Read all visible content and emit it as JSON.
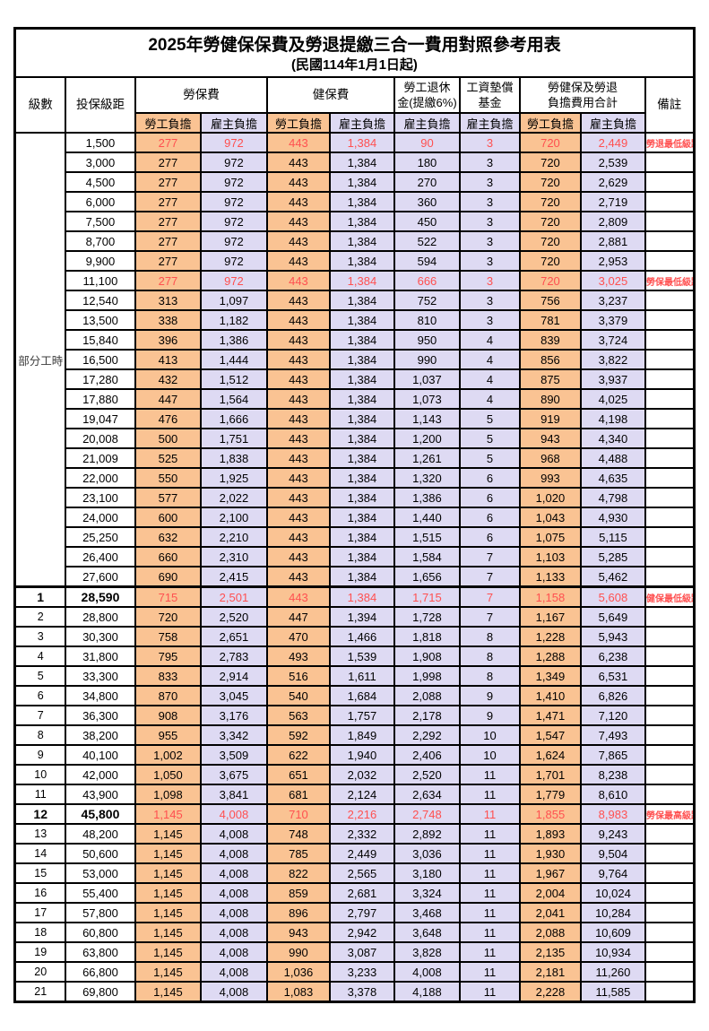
{
  "title": "2025年勞健保保費及勞退提繳三合一費用對照參考用表",
  "subtitle": "(民國114年1月1日起)",
  "header": {
    "level": "級數",
    "bracket": "投保級距",
    "labor_insurance": "勞保費",
    "health_insurance": "健保費",
    "pension_line1": "勞工退休",
    "pension_line2": "金(提繳6%)",
    "fund_line1": "工資墊償",
    "fund_line2": "基金",
    "total_line1": "勞健保及勞退",
    "total_line2": "負擔費用合計",
    "employee": "勞工負擔",
    "employer": "雇主負擔",
    "remark": "備註"
  },
  "part_time_label": "部分工時",
  "colors": {
    "employee_fill": "#FAC393",
    "employer_fill": "#DEDAF3",
    "highlight_red": "#FF5050",
    "border": "#000000"
  },
  "rows": [
    {
      "level": "",
      "bracket": "1,500",
      "li_emp": "277",
      "li_er": "972",
      "hi_emp": "443",
      "hi_er": "1,384",
      "pension": "90",
      "fund": "3",
      "tot_emp": "720",
      "tot_er": "2,449",
      "remark": "勞退最低級距",
      "red": true,
      "bold": false,
      "thick_top": false
    },
    {
      "level": "",
      "bracket": "3,000",
      "li_emp": "277",
      "li_er": "972",
      "hi_emp": "443",
      "hi_er": "1,384",
      "pension": "180",
      "fund": "3",
      "tot_emp": "720",
      "tot_er": "2,539",
      "remark": "",
      "red": false,
      "bold": false,
      "thick_top": false
    },
    {
      "level": "",
      "bracket": "4,500",
      "li_emp": "277",
      "li_er": "972",
      "hi_emp": "443",
      "hi_er": "1,384",
      "pension": "270",
      "fund": "3",
      "tot_emp": "720",
      "tot_er": "2,629",
      "remark": "",
      "red": false,
      "bold": false,
      "thick_top": false
    },
    {
      "level": "",
      "bracket": "6,000",
      "li_emp": "277",
      "li_er": "972",
      "hi_emp": "443",
      "hi_er": "1,384",
      "pension": "360",
      "fund": "3",
      "tot_emp": "720",
      "tot_er": "2,719",
      "remark": "",
      "red": false,
      "bold": false,
      "thick_top": false
    },
    {
      "level": "",
      "bracket": "7,500",
      "li_emp": "277",
      "li_er": "972",
      "hi_emp": "443",
      "hi_er": "1,384",
      "pension": "450",
      "fund": "3",
      "tot_emp": "720",
      "tot_er": "2,809",
      "remark": "",
      "red": false,
      "bold": false,
      "thick_top": false
    },
    {
      "level": "",
      "bracket": "8,700",
      "li_emp": "277",
      "li_er": "972",
      "hi_emp": "443",
      "hi_er": "1,384",
      "pension": "522",
      "fund": "3",
      "tot_emp": "720",
      "tot_er": "2,881",
      "remark": "",
      "red": false,
      "bold": false,
      "thick_top": false
    },
    {
      "level": "",
      "bracket": "9,900",
      "li_emp": "277",
      "li_er": "972",
      "hi_emp": "443",
      "hi_er": "1,384",
      "pension": "594",
      "fund": "3",
      "tot_emp": "720",
      "tot_er": "2,953",
      "remark": "",
      "red": false,
      "bold": false,
      "thick_top": false
    },
    {
      "level": "",
      "bracket": "11,100",
      "li_emp": "277",
      "li_er": "972",
      "hi_emp": "443",
      "hi_er": "1,384",
      "pension": "666",
      "fund": "3",
      "tot_emp": "720",
      "tot_er": "3,025",
      "remark": "勞保最低級距",
      "red": true,
      "bold": false,
      "thick_top": false
    },
    {
      "level": "",
      "bracket": "12,540",
      "li_emp": "313",
      "li_er": "1,097",
      "hi_emp": "443",
      "hi_er": "1,384",
      "pension": "752",
      "fund": "3",
      "tot_emp": "756",
      "tot_er": "3,237",
      "remark": "",
      "red": false,
      "bold": false,
      "thick_top": false
    },
    {
      "level": "",
      "bracket": "13,500",
      "li_emp": "338",
      "li_er": "1,182",
      "hi_emp": "443",
      "hi_er": "1,384",
      "pension": "810",
      "fund": "3",
      "tot_emp": "781",
      "tot_er": "3,379",
      "remark": "",
      "red": false,
      "bold": false,
      "thick_top": false
    },
    {
      "level": "",
      "bracket": "15,840",
      "li_emp": "396",
      "li_er": "1,386",
      "hi_emp": "443",
      "hi_er": "1,384",
      "pension": "950",
      "fund": "4",
      "tot_emp": "839",
      "tot_er": "3,724",
      "remark": "",
      "red": false,
      "bold": false,
      "thick_top": false
    },
    {
      "level": "",
      "bracket": "16,500",
      "li_emp": "413",
      "li_er": "1,444",
      "hi_emp": "443",
      "hi_er": "1,384",
      "pension": "990",
      "fund": "4",
      "tot_emp": "856",
      "tot_er": "3,822",
      "remark": "",
      "red": false,
      "bold": false,
      "thick_top": false
    },
    {
      "level": "",
      "bracket": "17,280",
      "li_emp": "432",
      "li_er": "1,512",
      "hi_emp": "443",
      "hi_er": "1,384",
      "pension": "1,037",
      "fund": "4",
      "tot_emp": "875",
      "tot_er": "3,937",
      "remark": "",
      "red": false,
      "bold": false,
      "thick_top": false
    },
    {
      "level": "",
      "bracket": "17,880",
      "li_emp": "447",
      "li_er": "1,564",
      "hi_emp": "443",
      "hi_er": "1,384",
      "pension": "1,073",
      "fund": "4",
      "tot_emp": "890",
      "tot_er": "4,025",
      "remark": "",
      "red": false,
      "bold": false,
      "thick_top": false
    },
    {
      "level": "",
      "bracket": "19,047",
      "li_emp": "476",
      "li_er": "1,666",
      "hi_emp": "443",
      "hi_er": "1,384",
      "pension": "1,143",
      "fund": "5",
      "tot_emp": "919",
      "tot_er": "4,198",
      "remark": "",
      "red": false,
      "bold": false,
      "thick_top": false
    },
    {
      "level": "",
      "bracket": "20,008",
      "li_emp": "500",
      "li_er": "1,751",
      "hi_emp": "443",
      "hi_er": "1,384",
      "pension": "1,200",
      "fund": "5",
      "tot_emp": "943",
      "tot_er": "4,340",
      "remark": "",
      "red": false,
      "bold": false,
      "thick_top": false
    },
    {
      "level": "",
      "bracket": "21,009",
      "li_emp": "525",
      "li_er": "1,838",
      "hi_emp": "443",
      "hi_er": "1,384",
      "pension": "1,261",
      "fund": "5",
      "tot_emp": "968",
      "tot_er": "4,488",
      "remark": "",
      "red": false,
      "bold": false,
      "thick_top": false
    },
    {
      "level": "",
      "bracket": "22,000",
      "li_emp": "550",
      "li_er": "1,925",
      "hi_emp": "443",
      "hi_er": "1,384",
      "pension": "1,320",
      "fund": "6",
      "tot_emp": "993",
      "tot_er": "4,635",
      "remark": "",
      "red": false,
      "bold": false,
      "thick_top": false
    },
    {
      "level": "",
      "bracket": "23,100",
      "li_emp": "577",
      "li_er": "2,022",
      "hi_emp": "443",
      "hi_er": "1,384",
      "pension": "1,386",
      "fund": "6",
      "tot_emp": "1,020",
      "tot_er": "4,798",
      "remark": "",
      "red": false,
      "bold": false,
      "thick_top": false
    },
    {
      "level": "",
      "bracket": "24,000",
      "li_emp": "600",
      "li_er": "2,100",
      "hi_emp": "443",
      "hi_er": "1,384",
      "pension": "1,440",
      "fund": "6",
      "tot_emp": "1,043",
      "tot_er": "4,930",
      "remark": "",
      "red": false,
      "bold": false,
      "thick_top": false
    },
    {
      "level": "",
      "bracket": "25,250",
      "li_emp": "632",
      "li_er": "2,210",
      "hi_emp": "443",
      "hi_er": "1,384",
      "pension": "1,515",
      "fund": "6",
      "tot_emp": "1,075",
      "tot_er": "5,115",
      "remark": "",
      "red": false,
      "bold": false,
      "thick_top": false
    },
    {
      "level": "",
      "bracket": "26,400",
      "li_emp": "660",
      "li_er": "2,310",
      "hi_emp": "443",
      "hi_er": "1,384",
      "pension": "1,584",
      "fund": "7",
      "tot_emp": "1,103",
      "tot_er": "5,285",
      "remark": "",
      "red": false,
      "bold": false,
      "thick_top": false
    },
    {
      "level": "",
      "bracket": "27,600",
      "li_emp": "690",
      "li_er": "2,415",
      "hi_emp": "443",
      "hi_er": "1,384",
      "pension": "1,656",
      "fund": "7",
      "tot_emp": "1,133",
      "tot_er": "5,462",
      "remark": "",
      "red": false,
      "bold": false,
      "thick_top": false
    },
    {
      "level": "1",
      "bracket": "28,590",
      "li_emp": "715",
      "li_er": "2,501",
      "hi_emp": "443",
      "hi_er": "1,384",
      "pension": "1,715",
      "fund": "7",
      "tot_emp": "1,158",
      "tot_er": "5,608",
      "remark": "健保最低級距",
      "red": true,
      "bold": true,
      "thick_top": true
    },
    {
      "level": "2",
      "bracket": "28,800",
      "li_emp": "720",
      "li_er": "2,520",
      "hi_emp": "447",
      "hi_er": "1,394",
      "pension": "1,728",
      "fund": "7",
      "tot_emp": "1,167",
      "tot_er": "5,649",
      "remark": "",
      "red": false,
      "bold": false,
      "thick_top": false
    },
    {
      "level": "3",
      "bracket": "30,300",
      "li_emp": "758",
      "li_er": "2,651",
      "hi_emp": "470",
      "hi_er": "1,466",
      "pension": "1,818",
      "fund": "8",
      "tot_emp": "1,228",
      "tot_er": "5,943",
      "remark": "",
      "red": false,
      "bold": false,
      "thick_top": false
    },
    {
      "level": "4",
      "bracket": "31,800",
      "li_emp": "795",
      "li_er": "2,783",
      "hi_emp": "493",
      "hi_er": "1,539",
      "pension": "1,908",
      "fund": "8",
      "tot_emp": "1,288",
      "tot_er": "6,238",
      "remark": "",
      "red": false,
      "bold": false,
      "thick_top": false
    },
    {
      "level": "5",
      "bracket": "33,300",
      "li_emp": "833",
      "li_er": "2,914",
      "hi_emp": "516",
      "hi_er": "1,611",
      "pension": "1,998",
      "fund": "8",
      "tot_emp": "1,349",
      "tot_er": "6,531",
      "remark": "",
      "red": false,
      "bold": false,
      "thick_top": false
    },
    {
      "level": "6",
      "bracket": "34,800",
      "li_emp": "870",
      "li_er": "3,045",
      "hi_emp": "540",
      "hi_er": "1,684",
      "pension": "2,088",
      "fund": "9",
      "tot_emp": "1,410",
      "tot_er": "6,826",
      "remark": "",
      "red": false,
      "bold": false,
      "thick_top": false
    },
    {
      "level": "7",
      "bracket": "36,300",
      "li_emp": "908",
      "li_er": "3,176",
      "hi_emp": "563",
      "hi_er": "1,757",
      "pension": "2,178",
      "fund": "9",
      "tot_emp": "1,471",
      "tot_er": "7,120",
      "remark": "",
      "red": false,
      "bold": false,
      "thick_top": false
    },
    {
      "level": "8",
      "bracket": "38,200",
      "li_emp": "955",
      "li_er": "3,342",
      "hi_emp": "592",
      "hi_er": "1,849",
      "pension": "2,292",
      "fund": "10",
      "tot_emp": "1,547",
      "tot_er": "7,493",
      "remark": "",
      "red": false,
      "bold": false,
      "thick_top": false
    },
    {
      "level": "9",
      "bracket": "40,100",
      "li_emp": "1,002",
      "li_er": "3,509",
      "hi_emp": "622",
      "hi_er": "1,940",
      "pension": "2,406",
      "fund": "10",
      "tot_emp": "1,624",
      "tot_er": "7,865",
      "remark": "",
      "red": false,
      "bold": false,
      "thick_top": false
    },
    {
      "level": "10",
      "bracket": "42,000",
      "li_emp": "1,050",
      "li_er": "3,675",
      "hi_emp": "651",
      "hi_er": "2,032",
      "pension": "2,520",
      "fund": "11",
      "tot_emp": "1,701",
      "tot_er": "8,238",
      "remark": "",
      "red": false,
      "bold": false,
      "thick_top": false
    },
    {
      "level": "11",
      "bracket": "43,900",
      "li_emp": "1,098",
      "li_er": "3,841",
      "hi_emp": "681",
      "hi_er": "2,124",
      "pension": "2,634",
      "fund": "11",
      "tot_emp": "1,779",
      "tot_er": "8,610",
      "remark": "",
      "red": false,
      "bold": false,
      "thick_top": false
    },
    {
      "level": "12",
      "bracket": "45,800",
      "li_emp": "1,145",
      "li_er": "4,008",
      "hi_emp": "710",
      "hi_er": "2,216",
      "pension": "2,748",
      "fund": "11",
      "tot_emp": "1,855",
      "tot_er": "8,983",
      "remark": "勞保最高級距",
      "red": true,
      "bold": true,
      "thick_top": false
    },
    {
      "level": "13",
      "bracket": "48,200",
      "li_emp": "1,145",
      "li_er": "4,008",
      "hi_emp": "748",
      "hi_er": "2,332",
      "pension": "2,892",
      "fund": "11",
      "tot_emp": "1,893",
      "tot_er": "9,243",
      "remark": "",
      "red": false,
      "bold": false,
      "thick_top": false
    },
    {
      "level": "14",
      "bracket": "50,600",
      "li_emp": "1,145",
      "li_er": "4,008",
      "hi_emp": "785",
      "hi_er": "2,449",
      "pension": "3,036",
      "fund": "11",
      "tot_emp": "1,930",
      "tot_er": "9,504",
      "remark": "",
      "red": false,
      "bold": false,
      "thick_top": false
    },
    {
      "level": "15",
      "bracket": "53,000",
      "li_emp": "1,145",
      "li_er": "4,008",
      "hi_emp": "822",
      "hi_er": "2,565",
      "pension": "3,180",
      "fund": "11",
      "tot_emp": "1,967",
      "tot_er": "9,764",
      "remark": "",
      "red": false,
      "bold": false,
      "thick_top": false
    },
    {
      "level": "16",
      "bracket": "55,400",
      "li_emp": "1,145",
      "li_er": "4,008",
      "hi_emp": "859",
      "hi_er": "2,681",
      "pension": "3,324",
      "fund": "11",
      "tot_emp": "2,004",
      "tot_er": "10,024",
      "remark": "",
      "red": false,
      "bold": false,
      "thick_top": false
    },
    {
      "level": "17",
      "bracket": "57,800",
      "li_emp": "1,145",
      "li_er": "4,008",
      "hi_emp": "896",
      "hi_er": "2,797",
      "pension": "3,468",
      "fund": "11",
      "tot_emp": "2,041",
      "tot_er": "10,284",
      "remark": "",
      "red": false,
      "bold": false,
      "thick_top": false
    },
    {
      "level": "18",
      "bracket": "60,800",
      "li_emp": "1,145",
      "li_er": "4,008",
      "hi_emp": "943",
      "hi_er": "2,942",
      "pension": "3,648",
      "fund": "11",
      "tot_emp": "2,088",
      "tot_er": "10,609",
      "remark": "",
      "red": false,
      "bold": false,
      "thick_top": false
    },
    {
      "level": "19",
      "bracket": "63,800",
      "li_emp": "1,145",
      "li_er": "4,008",
      "hi_emp": "990",
      "hi_er": "3,087",
      "pension": "3,828",
      "fund": "11",
      "tot_emp": "2,135",
      "tot_er": "10,934",
      "remark": "",
      "red": false,
      "bold": false,
      "thick_top": false
    },
    {
      "level": "20",
      "bracket": "66,800",
      "li_emp": "1,145",
      "li_er": "4,008",
      "hi_emp": "1,036",
      "hi_er": "3,233",
      "pension": "4,008",
      "fund": "11",
      "tot_emp": "2,181",
      "tot_er": "11,260",
      "remark": "",
      "red": false,
      "bold": false,
      "thick_top": false
    },
    {
      "level": "21",
      "bracket": "69,800",
      "li_emp": "1,145",
      "li_er": "4,008",
      "hi_emp": "1,083",
      "hi_er": "3,378",
      "pension": "4,188",
      "fund": "11",
      "tot_emp": "2,228",
      "tot_er": "11,585",
      "remark": "",
      "red": false,
      "bold": false,
      "thick_top": false
    }
  ]
}
